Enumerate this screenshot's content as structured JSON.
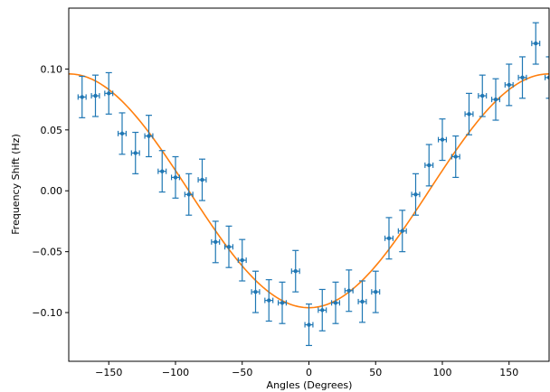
{
  "chart_data": {
    "type": "scatter",
    "title": "",
    "xlabel": "Angles (Degrees)",
    "ylabel": "Frequency Shift (Hz)",
    "xlim": [
      -180,
      180
    ],
    "ylim": [
      -0.14,
      0.15
    ],
    "xticks": [
      -150,
      -100,
      -50,
      0,
      50,
      100,
      150
    ],
    "xtick_labels": [
      "−150",
      "−100",
      "−50",
      "0",
      "50",
      "100",
      "150"
    ],
    "yticks": [
      -0.1,
      -0.05,
      0.0,
      0.05,
      0.1
    ],
    "ytick_labels": [
      "−0.10",
      "−0.05",
      "0.00",
      "0.05",
      "0.10"
    ],
    "grid": false,
    "series": [
      {
        "kind": "errorbar",
        "color": "#1f77b4",
        "x": [
          -170,
          -160,
          -150,
          -140,
          -130,
          -120,
          -110,
          -100,
          -90,
          -80,
          -70,
          -60,
          -50,
          -40,
          -30,
          -20,
          -10,
          0,
          10,
          20,
          30,
          40,
          50,
          60,
          70,
          80,
          90,
          100,
          110,
          120,
          130,
          140,
          150,
          160,
          170,
          180
        ],
        "y": [
          0.077,
          0.078,
          0.08,
          0.047,
          0.031,
          0.045,
          0.016,
          0.011,
          -0.003,
          0.009,
          -0.042,
          -0.046,
          -0.057,
          -0.083,
          -0.09,
          -0.092,
          -0.066,
          -0.11,
          -0.098,
          -0.092,
          -0.082,
          -0.091,
          -0.083,
          -0.039,
          -0.033,
          -0.003,
          0.021,
          0.042,
          0.028,
          0.063,
          0.078,
          0.075,
          0.087,
          0.093,
          0.121,
          0.093
        ],
        "yerr": 0.017,
        "xerr": 3
      },
      {
        "kind": "line",
        "color": "#ff7f0e",
        "model": "cosine",
        "amplitude": 0.096,
        "offset": 0.0
      }
    ]
  }
}
